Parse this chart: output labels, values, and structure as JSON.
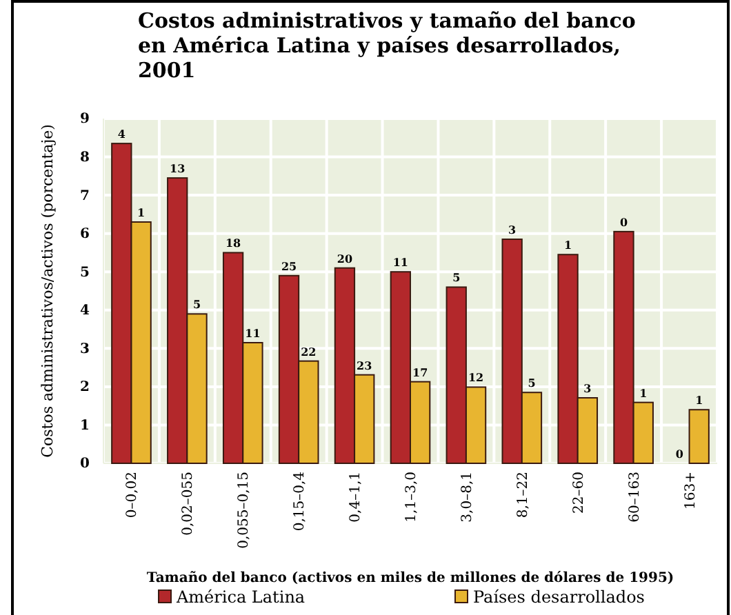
{
  "chart_data": {
    "type": "bar",
    "title": "Costos administrativos y tamaño del banco en América Latina y países desarrollados, 2001",
    "xlabel": "Tamaño del banco (activos en miles de millones de dólares de 1995)",
    "ylabel": "Costos administrativos/activos (porcentaje)",
    "categories": [
      "0–0,02",
      "0,02–055",
      "0,055–0,15",
      "0,15–0,4",
      "0,4–1,1",
      "1,1–3,0",
      "3,0–8,1",
      "8,1–22",
      "22–60",
      "60–163",
      "163+"
    ],
    "series": [
      {
        "name": "América Latina",
        "color": "#b3282b",
        "values": [
          8.35,
          7.45,
          5.5,
          4.9,
          5.1,
          5.0,
          4.6,
          5.85,
          5.45,
          6.05,
          0
        ]
      },
      {
        "name": "Países desarrollados",
        "color": "#e8b530",
        "values": [
          6.3,
          3.9,
          3.15,
          2.67,
          2.31,
          2.13,
          1.99,
          1.85,
          1.71,
          1.59,
          1.4
        ]
      }
    ],
    "annotations": [
      {
        "text": "4",
        "x": "0–0,02",
        "y": 8.35
      },
      {
        "text": "13",
        "x": "0,02–055",
        "y": 7.45
      },
      {
        "text": "18",
        "x": "0,055–0,15",
        "y": 5.5
      },
      {
        "text": "25",
        "x": "0,15–0,4",
        "y": 4.9
      },
      {
        "text": "20",
        "x": "0,4–1,1",
        "y": 5.1
      },
      {
        "text": "11",
        "x": "1,1–3,0",
        "y": 5.0
      },
      {
        "text": "5",
        "x": "3,0–8,1",
        "y": 4.6
      },
      {
        "text": "3",
        "x": "8,1–22",
        "y": 5.85
      },
      {
        "text": "1",
        "x": "22–60",
        "y": 5.45
      },
      {
        "text": "0",
        "x": "60–163",
        "y": 6.05
      },
      {
        "text": "0",
        "x": "163+",
        "y": 0
      },
      {
        "text": "1",
        "x": "0–0,02",
        "y": 6.3
      },
      {
        "text": "5",
        "x": "0,02–055",
        "y": 3.9
      },
      {
        "text": "11",
        "x": "0,055–0,15",
        "y": 3.15
      },
      {
        "text": "22",
        "x": "0,15–0,4",
        "y": 2.67
      },
      {
        "text": "23",
        "x": "0,4–1,1",
        "y": 2.31
      },
      {
        "text": "17",
        "x": "1,1–3,0",
        "y": 2.13
      },
      {
        "text": "12",
        "x": "3,0–8,1",
        "y": 1.99
      },
      {
        "text": "5",
        "x": "8,1–22",
        "y": 1.85
      },
      {
        "text": "3",
        "x": "22–60",
        "y": 1.71
      },
      {
        "text": "1",
        "x": "60–163",
        "y": 1.59
      },
      {
        "text": "1",
        "x": "163+",
        "y": 1.4
      }
    ],
    "ylim": [
      0,
      9
    ],
    "yticks": [
      0,
      1,
      2,
      3,
      4,
      5,
      6,
      7,
      8,
      9
    ],
    "grid": true,
    "legend": "bottom"
  }
}
